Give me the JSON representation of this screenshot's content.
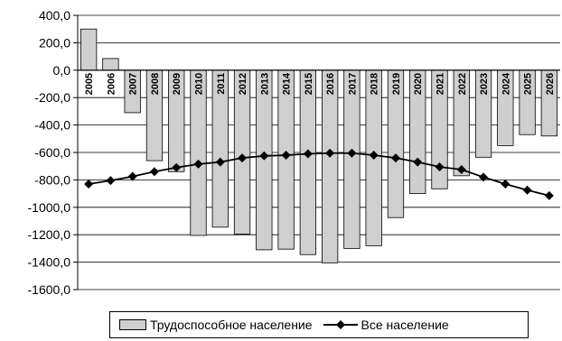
{
  "chart_data": {
    "type": "bar+line",
    "categories": [
      "2005",
      "2006",
      "2007",
      "2008",
      "2009",
      "2010",
      "2011",
      "2012",
      "2013",
      "2014",
      "2015",
      "2016",
      "2017",
      "2018",
      "2019",
      "2020",
      "2021",
      "2022",
      "2023",
      "2024",
      "2025",
      "2026"
    ],
    "series": [
      {
        "name": "Трудоспособное население",
        "type": "bar",
        "values": [
          300,
          85,
          -310,
          -660,
          -740,
          -1205,
          -1145,
          -1195,
          -1310,
          -1305,
          -1345,
          -1405,
          -1300,
          -1280,
          -1075,
          -900,
          -865,
          -770,
          -635,
          -550,
          -470,
          -480
        ]
      },
      {
        "name": "Все население",
        "type": "line",
        "values": [
          -830,
          -805,
          -775,
          -740,
          -710,
          -685,
          -670,
          -640,
          -625,
          -620,
          -610,
          -605,
          -605,
          -620,
          -640,
          -670,
          -705,
          -725,
          -780,
          -830,
          -875,
          -915
        ]
      }
    ],
    "ylim": [
      -1600,
      400
    ],
    "yticks": [
      "400,0",
      "200,0",
      "0,0",
      "-200,0",
      "-400,0",
      "-600,0",
      "-800,0",
      "-1000,0",
      "-1200,0",
      "-1400,0",
      "-1600,0"
    ],
    "grid": true,
    "legend_position": "bottom",
    "colors": {
      "bar_fill": "#cfcfcf",
      "line": "#000000"
    }
  }
}
